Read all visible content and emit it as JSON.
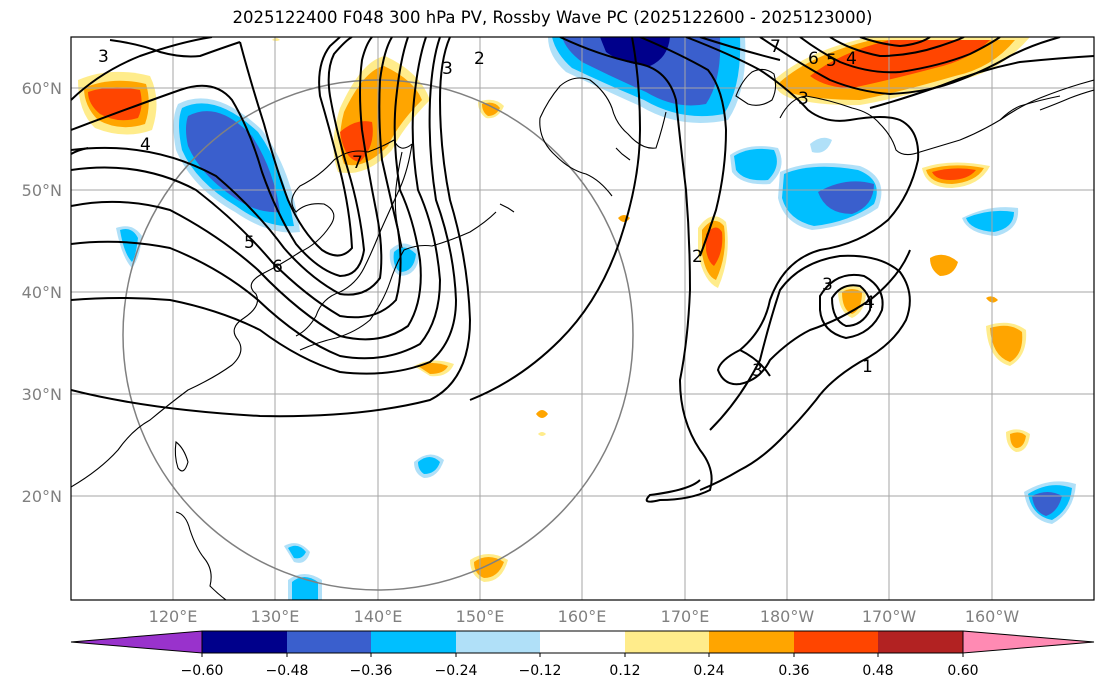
{
  "title": "2025122400 F048 300 hPa PV, Rossby Wave PC (2025122600 - 2025123000)",
  "map": {
    "lat_labels": [
      "60°N",
      "50°N",
      "40°N",
      "30°N",
      "20°N"
    ],
    "lon_labels": [
      "120°E",
      "130°E",
      "140°E",
      "150°E",
      "160°E",
      "170°E",
      "180°W",
      "170°W",
      "160°W"
    ],
    "contour_labels": [
      "3",
      "4",
      "5",
      "6",
      "7",
      "3",
      "2",
      "6",
      "5",
      "4",
      "3",
      "7",
      "2",
      "3",
      "4",
      "3",
      "1"
    ]
  },
  "colorbar": {
    "ticks": [
      "−0.60",
      "−0.48",
      "−0.36",
      "−0.24",
      "−0.12",
      "0.12",
      "0.24",
      "0.36",
      "0.48",
      "0.60"
    ],
    "colors": [
      "#9932cc",
      "#00008b",
      "#3a5fcd",
      "#00bfff",
      "#b0e0f8",
      "#ffffff",
      "#ffec8b",
      "#ffa500",
      "#ff4500",
      "#b22222",
      "#ff8ab3"
    ]
  },
  "colors": {
    "neg_weak": "#b0e0f8",
    "neg_mid": "#00bfff",
    "neg_strong": "#3a5fcd",
    "neg_max": "#00008b",
    "pos_weak": "#ffec8b",
    "pos_mid": "#ffa500",
    "pos_strong": "#ff4500"
  }
}
